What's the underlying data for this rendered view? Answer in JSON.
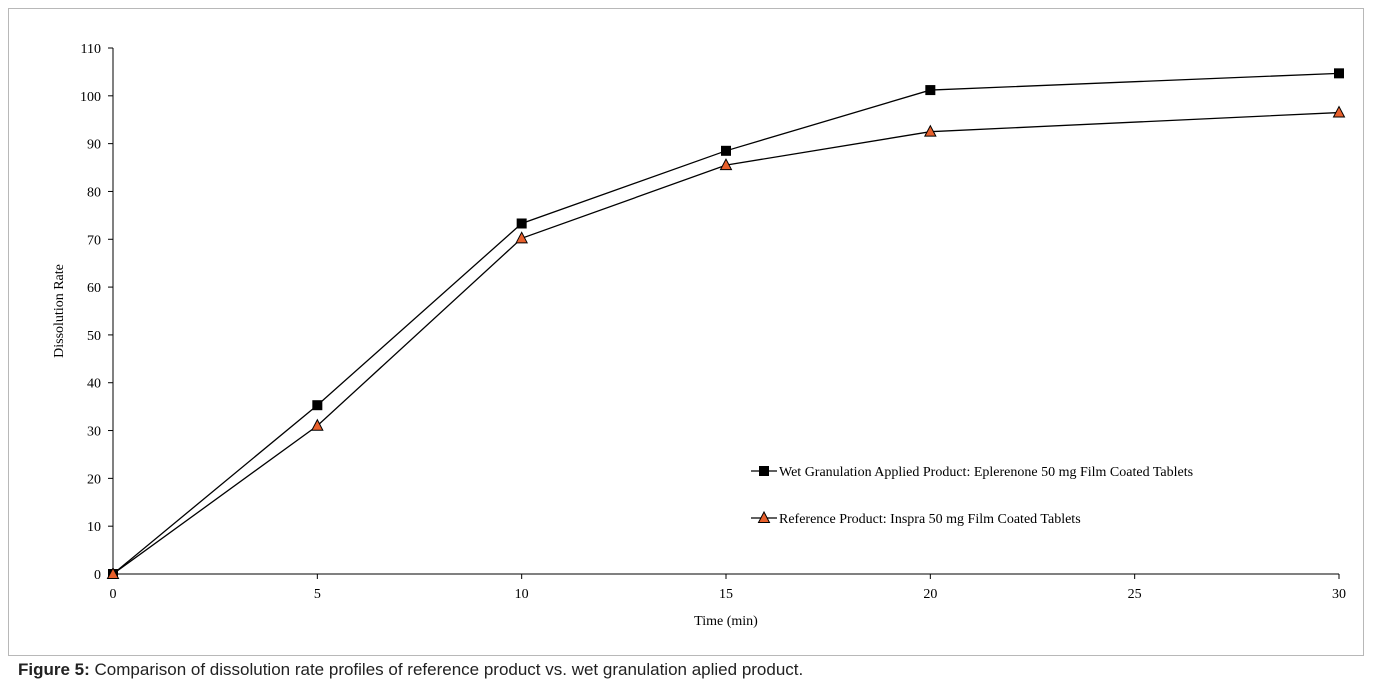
{
  "caption": {
    "label": "Figure 5:",
    "text": " Comparison of dissolution rate profiles of reference product vs. wet granulation aplied product."
  },
  "chart_data": {
    "type": "line",
    "xlabel": "Time (min)",
    "ylabel": "Dissolution Rate",
    "x": [
      0,
      5,
      10,
      15,
      20,
      30
    ],
    "xlim": [
      0,
      30
    ],
    "xticks": [
      0,
      5,
      10,
      15,
      20,
      25,
      30
    ],
    "ylim": [
      0,
      110
    ],
    "yticks": [
      0,
      10,
      20,
      30,
      40,
      50,
      60,
      70,
      80,
      90,
      100,
      110
    ],
    "grid": false,
    "legend_position": "bottom-right",
    "series": [
      {
        "name": "Wet Granulation Applied Product: Eplerenone 50 mg Film Coated Tablets",
        "values": [
          0,
          35.3,
          73.3,
          88.5,
          101.2,
          104.7
        ],
        "marker": "square",
        "color": "#000000"
      },
      {
        "name": "Reference Product: Inspra 50 mg Film Coated Tablets",
        "values": [
          0,
          31.0,
          70.2,
          85.5,
          92.5,
          96.5
        ],
        "marker": "triangle",
        "color": "#e8602c"
      }
    ]
  }
}
